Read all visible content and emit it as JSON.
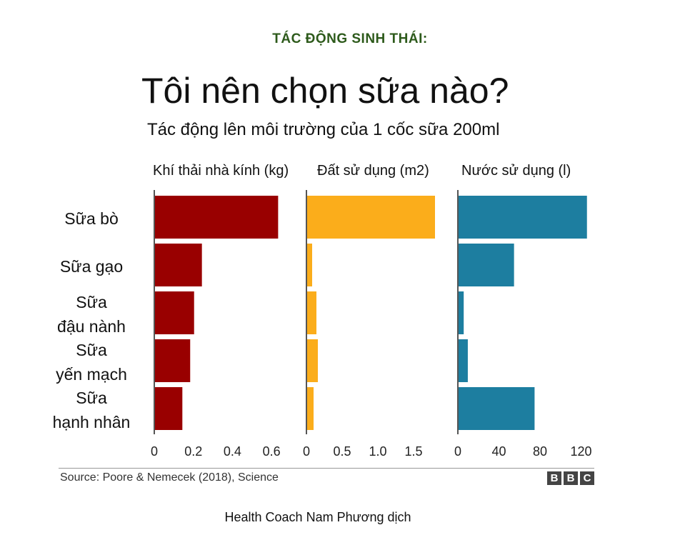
{
  "header": {
    "kicker": "TÁC ĐỘNG SINH THÁI:",
    "title": "Tôi nên chọn sữa nào?",
    "subtitle": "Tác động lên môi trường của 1 cốc sữa 200ml"
  },
  "footer": {
    "source": "Source: Poore & Nemecek (2018), Science",
    "logo_letters": [
      "B",
      "B",
      "C"
    ],
    "credit": "Health Coach Nam Phương dịch"
  },
  "chart_data": {
    "type": "bar",
    "orientation": "horizontal",
    "categories": [
      [
        "Sữa bò"
      ],
      [
        "Sữa gạo"
      ],
      [
        "Sữa",
        "đậu nành"
      ],
      [
        "Sữa",
        "yến mạch"
      ],
      [
        "Sữa",
        "hạnh nhân"
      ]
    ],
    "panels": [
      {
        "label": "Khí thải nhà kính (kg)",
        "color": "#990000",
        "xlim": [
          0,
          0.72
        ],
        "ticks": [
          0,
          0.2,
          0.4,
          0.6
        ],
        "tick_labels": [
          "0",
          "0.2",
          "0.4",
          "0.6"
        ],
        "values": [
          0.63,
          0.24,
          0.2,
          0.18,
          0.14
        ]
      },
      {
        "label": "Đất sử dụng (m2)",
        "color": "#fbad1b",
        "xlim": [
          0,
          1.97
        ],
        "ticks": [
          0,
          0.5,
          1.0,
          1.5
        ],
        "tick_labels": [
          "0",
          "0.5",
          "1.0",
          "1.5"
        ],
        "values": [
          1.79,
          0.07,
          0.13,
          0.15,
          0.09
        ]
      },
      {
        "label": "Nước sử dụng (l)",
        "color": "#1d7ea0",
        "xlim": [
          0,
          137
        ],
        "ticks": [
          0,
          40,
          80,
          120
        ],
        "tick_labels": [
          "0",
          "40",
          "80",
          "120"
        ],
        "values": [
          125,
          54,
          5,
          9,
          74
        ]
      }
    ]
  }
}
